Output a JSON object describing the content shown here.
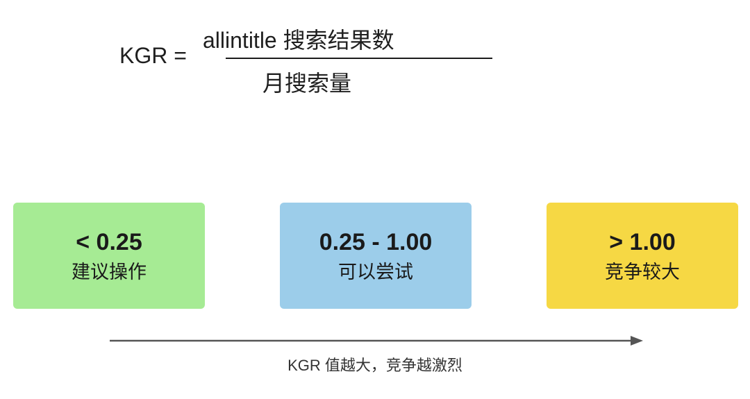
{
  "formula": {
    "lhs": "KGR =",
    "numerator": "allintitle 搜索结果数",
    "denominator": "月搜索量"
  },
  "ranges": [
    {
      "value": "< 0.25",
      "label": "建议操作",
      "color": "#a6eb94"
    },
    {
      "value": "0.25 - 1.00",
      "label": "可以尝试",
      "color": "#9ccdea"
    },
    {
      "value": "> 1.00",
      "label": "竞争较大",
      "color": "#f6d844"
    }
  ],
  "scale": {
    "caption": "KGR 值越大，竞争越激烈",
    "arrow_color": "#555555"
  }
}
